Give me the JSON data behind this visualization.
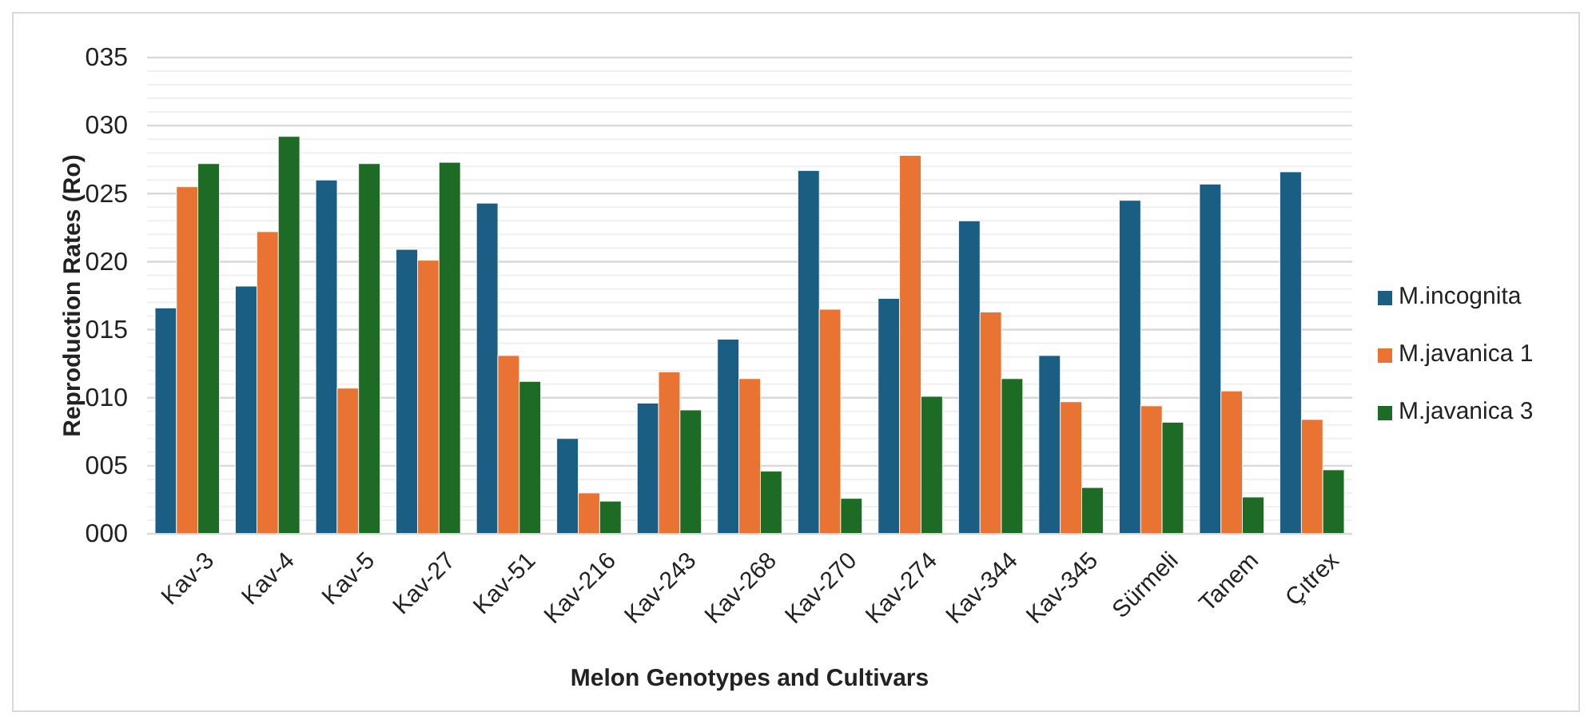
{
  "chart_data": {
    "type": "bar",
    "xlabel": "Melon Genotypes and Cultivars",
    "ylabel": "Reproduction Rates (Ro)",
    "categories": [
      "Kav-3",
      "Kav-4",
      "Kav-5",
      "Kav-27",
      "Kav-51",
      "Kav-216",
      "Kav-243",
      "Kav-268",
      "Kav-270",
      "Kav-274",
      "Kav-344",
      "Kav-345",
      "Sürmeli",
      "Tanem",
      "Çıtrex"
    ],
    "series": [
      {
        "name": "M.incognita",
        "color": "#1a5e84",
        "values": [
          16.6,
          18.2,
          26.0,
          20.9,
          24.3,
          7.0,
          9.6,
          14.3,
          26.7,
          17.3,
          23.0,
          13.1,
          24.5,
          25.7,
          26.6
        ]
      },
      {
        "name": "M.javanica 1",
        "color": "#e97332",
        "values": [
          25.5,
          22.2,
          10.7,
          20.1,
          13.1,
          3.0,
          11.9,
          11.4,
          16.5,
          27.8,
          16.3,
          9.7,
          9.4,
          10.5,
          8.4
        ]
      },
      {
        "name": "M.javanica 3",
        "color": "#1e6b25",
        "values": [
          27.2,
          29.2,
          27.2,
          27.3,
          11.2,
          2.4,
          9.1,
          4.6,
          2.6,
          10.1,
          11.4,
          3.4,
          8.2,
          2.7,
          4.7
        ]
      }
    ],
    "ylim": [
      0,
      35
    ],
    "yticks": [
      {
        "value": 0,
        "label": "000"
      },
      {
        "value": 5,
        "label": "005"
      },
      {
        "value": 10,
        "label": "010"
      },
      {
        "value": 15,
        "label": "015"
      },
      {
        "value": 20,
        "label": "020"
      },
      {
        "value": 25,
        "label": "025"
      },
      {
        "value": 30,
        "label": "030"
      },
      {
        "value": 35,
        "label": "035"
      }
    ],
    "grid": "y",
    "legend": "right"
  }
}
